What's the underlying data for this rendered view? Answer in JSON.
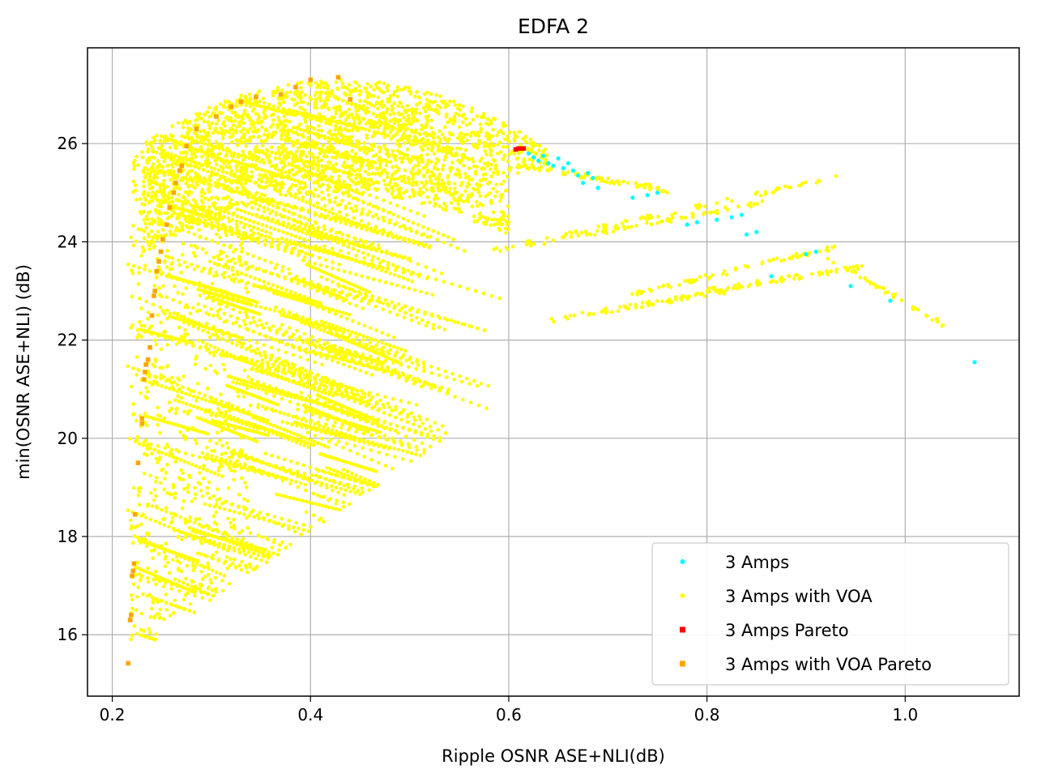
{
  "chart_data": {
    "type": "scatter",
    "title": "EDFA 2",
    "xlabel": "Ripple OSNR ASE+NLI(dB)",
    "ylabel": "min(OSNR ASE+NLI) (dB)",
    "xlim": [
      0.175,
      1.115
    ],
    "ylim": [
      14.75,
      27.95
    ],
    "xticks": [
      0.2,
      0.4,
      0.6,
      0.8,
      1.0
    ],
    "xtick_labels": [
      "0.2",
      "0.4",
      "0.6",
      "0.8",
      "1.0"
    ],
    "yticks": [
      16,
      18,
      20,
      22,
      24,
      26
    ],
    "ytick_labels": [
      "16",
      "18",
      "20",
      "22",
      "24",
      "26"
    ],
    "grid": true,
    "legend_position": "lower-right",
    "series": [
      {
        "name": "3 Amps",
        "color": "#00ffff",
        "marker": "circle",
        "points": [
          [
            0.62,
            25.8
          ],
          [
            0.625,
            25.72
          ],
          [
            0.63,
            25.65
          ],
          [
            0.635,
            25.75
          ],
          [
            0.64,
            25.6
          ],
          [
            0.645,
            25.55
          ],
          [
            0.65,
            25.7
          ],
          [
            0.655,
            25.5
          ],
          [
            0.66,
            25.6
          ],
          [
            0.665,
            25.45
          ],
          [
            0.67,
            25.35
          ],
          [
            0.675,
            25.2
          ],
          [
            0.68,
            25.4
          ],
          [
            0.685,
            25.3
          ],
          [
            0.69,
            25.1
          ],
          [
            0.725,
            24.9
          ],
          [
            0.74,
            24.95
          ],
          [
            0.75,
            25.0
          ],
          [
            0.78,
            24.35
          ],
          [
            0.79,
            24.4
          ],
          [
            0.81,
            24.45
          ],
          [
            0.825,
            24.5
          ],
          [
            0.835,
            24.55
          ],
          [
            0.84,
            24.15
          ],
          [
            0.85,
            24.2
          ],
          [
            0.865,
            23.3
          ],
          [
            0.9,
            23.75
          ],
          [
            0.91,
            23.8
          ],
          [
            0.945,
            23.1
          ],
          [
            0.985,
            22.8
          ],
          [
            1.07,
            21.55
          ]
        ]
      },
      {
        "name": "3 Amps with VOA",
        "color": "#ffff00",
        "marker": "circle",
        "points": []
      },
      {
        "name": "3 Amps Pareto",
        "color": "#ff0000",
        "marker": "square",
        "points": [
          [
            0.607,
            25.88
          ],
          [
            0.61,
            25.9
          ],
          [
            0.613,
            25.9
          ],
          [
            0.615,
            25.9
          ]
        ]
      },
      {
        "name": "3 Amps with VOA Pareto",
        "color": "#ffa500",
        "marker": "square",
        "points": [
          [
            0.216,
            15.42
          ],
          [
            0.218,
            16.3
          ],
          [
            0.219,
            16.4
          ],
          [
            0.22,
            17.2
          ],
          [
            0.221,
            17.3
          ],
          [
            0.222,
            17.45
          ],
          [
            0.223,
            18.45
          ],
          [
            0.226,
            19.5
          ],
          [
            0.23,
            20.4
          ],
          [
            0.23,
            20.3
          ],
          [
            0.232,
            21.2
          ],
          [
            0.233,
            21.35
          ],
          [
            0.234,
            21.5
          ],
          [
            0.236,
            21.6
          ],
          [
            0.238,
            21.85
          ],
          [
            0.24,
            22.5
          ],
          [
            0.242,
            22.9
          ],
          [
            0.243,
            23.0
          ],
          [
            0.245,
            23.4
          ],
          [
            0.247,
            23.6
          ],
          [
            0.249,
            23.8
          ],
          [
            0.251,
            24.05
          ],
          [
            0.255,
            24.35
          ],
          [
            0.258,
            24.7
          ],
          [
            0.262,
            25.0
          ],
          [
            0.264,
            25.2
          ],
          [
            0.268,
            25.45
          ],
          [
            0.27,
            25.55
          ],
          [
            0.275,
            25.95
          ],
          [
            0.285,
            26.3
          ],
          [
            0.305,
            26.55
          ],
          [
            0.32,
            26.75
          ],
          [
            0.33,
            26.85
          ],
          [
            0.345,
            26.95
          ],
          [
            0.37,
            27.0
          ],
          [
            0.385,
            27.15
          ],
          [
            0.4,
            27.3
          ],
          [
            0.428,
            27.35
          ],
          [
            0.44,
            26.9
          ]
        ]
      }
    ]
  }
}
